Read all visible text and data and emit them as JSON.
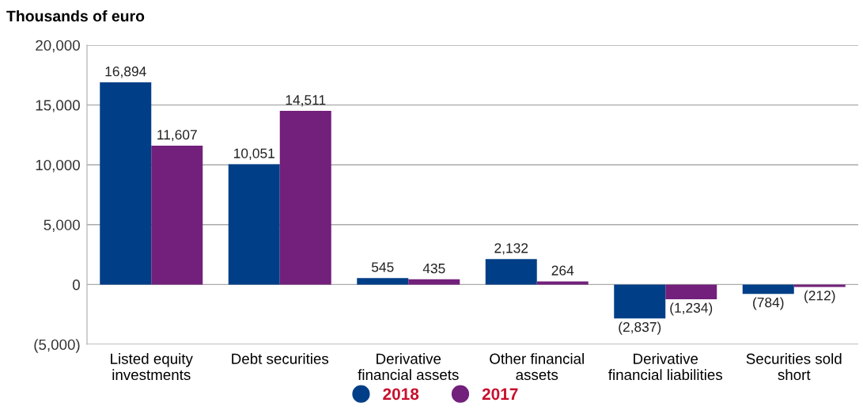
{
  "chart_data": {
    "type": "bar",
    "ylabel": "Thousands of euro",
    "categories": [
      "Listed equity\ninvestments",
      "Debt securities",
      "Derivative\nfinancial assets",
      "Other financial\nassets",
      "Derivative\nfinancial liabilities",
      "Securities sold\nshort"
    ],
    "series": [
      {
        "name": "2018",
        "color": "#003f87",
        "values": [
          16894,
          10051,
          545,
          2132,
          -2837,
          -784
        ],
        "value_labels": [
          "16,894",
          "10,051",
          "545",
          "2,132",
          "(2,837)",
          "(784)"
        ]
      },
      {
        "name": "2017",
        "color": "#72207b",
        "values": [
          11607,
          14511,
          435,
          264,
          -1234,
          -212
        ],
        "value_labels": [
          "11,607",
          "14,511",
          "435",
          "264",
          "(1,234)",
          "(212)"
        ]
      }
    ],
    "ylim": [
      -5000,
      20000
    ],
    "yticks": [
      {
        "value": -5000,
        "label": "(5,000)"
      },
      {
        "value": 0,
        "label": "0"
      },
      {
        "value": 5000,
        "label": "5,000"
      },
      {
        "value": 10000,
        "label": "10,000"
      },
      {
        "value": 15000,
        "label": "15,000"
      },
      {
        "value": 20000,
        "label": "20,000"
      }
    ],
    "grid": "y",
    "legend": "bottom",
    "marker": "circle"
  }
}
